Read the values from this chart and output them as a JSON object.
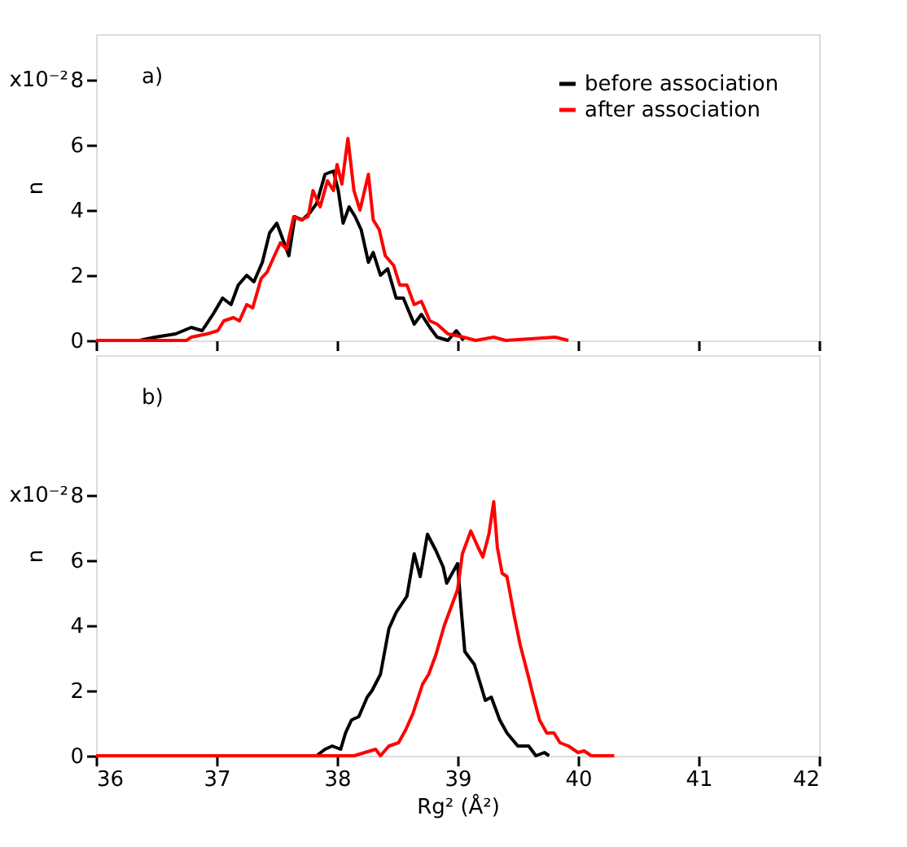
{
  "chart_data": [
    {
      "type": "line",
      "annotations": [
        "a)",
        "x10⁻²"
      ],
      "ylabel": "n",
      "xlim": [
        36,
        42
      ],
      "xticks": [
        36,
        37,
        38,
        39,
        40,
        41,
        42
      ],
      "ylim": [
        0,
        9.4
      ],
      "yticks": [
        0,
        2,
        4,
        6,
        8
      ],
      "tick_labels": "y",
      "legend": "top right",
      "grid": false,
      "series": [
        {
          "name": "before association",
          "color": "#000000",
          "x": [
            36.0,
            36.36,
            36.49,
            36.66,
            36.79,
            36.88,
            36.97,
            37.05,
            37.12,
            37.18,
            37.25,
            37.31,
            37.38,
            37.44,
            37.5,
            37.55,
            37.6,
            37.65,
            37.71,
            37.77,
            37.83,
            37.9,
            37.97,
            38.01,
            38.05,
            38.1,
            38.15,
            38.2,
            38.26,
            38.3,
            38.36,
            38.42,
            38.49,
            38.55,
            38.64,
            38.7,
            38.77,
            38.83,
            38.92,
            38.99,
            39.05
          ],
          "values": [
            0.0,
            0.0,
            0.1,
            0.2,
            0.4,
            0.3,
            0.8,
            1.3,
            1.1,
            1.7,
            2.0,
            1.8,
            2.4,
            3.3,
            3.6,
            3.1,
            2.6,
            3.8,
            3.7,
            3.9,
            4.2,
            5.1,
            5.2,
            4.6,
            3.6,
            4.1,
            3.8,
            3.4,
            2.4,
            2.7,
            2.0,
            2.2,
            1.3,
            1.3,
            0.5,
            0.8,
            0.4,
            0.1,
            0.0,
            0.3,
            0.0
          ]
        },
        {
          "name": "after association",
          "color": "#ff0000",
          "x": [
            36.0,
            36.75,
            36.79,
            36.92,
            37.01,
            37.06,
            37.14,
            37.19,
            37.25,
            37.3,
            37.37,
            37.42,
            37.48,
            37.53,
            37.58,
            37.64,
            37.7,
            37.76,
            37.8,
            37.86,
            37.92,
            37.97,
            38.0,
            38.04,
            38.09,
            38.14,
            38.19,
            38.26,
            38.3,
            38.35,
            38.4,
            38.47,
            38.52,
            38.58,
            38.64,
            38.7,
            38.77,
            38.83,
            38.92,
            39.05,
            39.15,
            39.3,
            39.4,
            39.81,
            39.92
          ],
          "values": [
            0.0,
            0.0,
            0.1,
            0.2,
            0.3,
            0.6,
            0.7,
            0.6,
            1.1,
            1.0,
            1.9,
            2.1,
            2.6,
            3.0,
            2.8,
            3.8,
            3.7,
            3.8,
            4.6,
            4.1,
            4.9,
            4.6,
            5.4,
            4.8,
            6.2,
            4.6,
            4.0,
            5.1,
            3.7,
            3.4,
            2.6,
            2.3,
            1.7,
            1.7,
            1.1,
            1.2,
            0.6,
            0.5,
            0.2,
            0.1,
            0.0,
            0.1,
            0.0,
            0.1,
            0.0
          ]
        }
      ]
    },
    {
      "type": "line",
      "annotations": [
        "b)",
        "x10⁻²"
      ],
      "ylabel": "n",
      "xlabel": "Rg² (Å²)",
      "xlim": [
        36,
        42
      ],
      "xticks": [
        36,
        37,
        38,
        39,
        40,
        41,
        42
      ],
      "ylim": [
        0,
        12.3
      ],
      "yticks": [
        0,
        2,
        4,
        6,
        8
      ],
      "grid": false,
      "series": [
        {
          "color": "#000000",
          "x": [
            37.83,
            37.9,
            37.96,
            38.03,
            38.07,
            38.12,
            38.18,
            38.25,
            38.29,
            38.36,
            38.43,
            38.49,
            38.58,
            38.64,
            38.69,
            38.75,
            38.82,
            38.88,
            38.91,
            39.0,
            39.03,
            39.06,
            39.14,
            39.19,
            39.23,
            39.28,
            39.35,
            39.41,
            39.5,
            39.59,
            39.65,
            39.72,
            39.76
          ],
          "values": [
            0.0,
            0.2,
            0.3,
            0.2,
            0.7,
            1.1,
            1.2,
            1.8,
            2.0,
            2.5,
            3.9,
            4.4,
            4.9,
            6.2,
            5.5,
            6.8,
            6.3,
            5.8,
            5.3,
            5.9,
            4.5,
            3.2,
            2.8,
            2.2,
            1.7,
            1.8,
            1.1,
            0.7,
            0.3,
            0.3,
            0.0,
            0.1,
            0.0
          ]
        },
        {
          "color": "#ff0000",
          "x": [
            36.0,
            38.14,
            38.23,
            38.32,
            38.36,
            38.43,
            38.51,
            38.57,
            38.63,
            38.71,
            38.76,
            38.82,
            38.89,
            38.95,
            39.0,
            39.04,
            39.11,
            39.17,
            39.21,
            39.26,
            39.3,
            39.33,
            39.37,
            39.41,
            39.47,
            39.52,
            39.59,
            39.63,
            39.68,
            39.74,
            39.8,
            39.85,
            39.92,
            40.0,
            40.05,
            40.11,
            40.3
          ],
          "values": [
            0.0,
            0.0,
            0.1,
            0.2,
            0.0,
            0.3,
            0.4,
            0.8,
            1.3,
            2.2,
            2.5,
            3.1,
            4.0,
            4.6,
            5.1,
            6.2,
            6.9,
            6.4,
            6.1,
            6.8,
            7.8,
            6.4,
            5.6,
            5.5,
            4.3,
            3.4,
            2.4,
            1.8,
            1.1,
            0.7,
            0.7,
            0.4,
            0.3,
            0.1,
            0.15,
            0.0,
            0.0
          ]
        }
      ]
    }
  ]
}
